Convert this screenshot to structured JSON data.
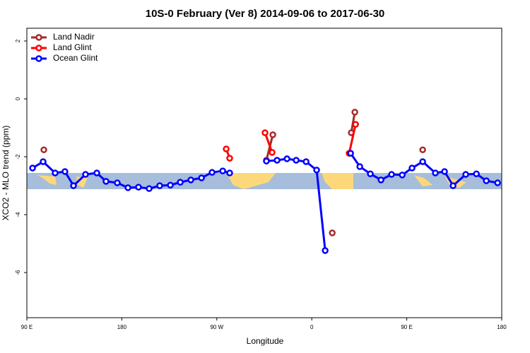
{
  "chart_data": {
    "type": "line",
    "title": "10S-0 February (Ver 8)   2014-09-06 to 2017-06-30",
    "xlabel": "Longitude",
    "ylabel": "XCO2 - MLO trend (ppm)",
    "xlim": [
      90,
      540
    ],
    "ylim": [
      -7.56,
      2.44
    ],
    "xticks": [
      {
        "value": 90,
        "label": "90 E"
      },
      180,
      {
        "value": 270,
        "label": "90 W"
      },
      {
        "value": 360,
        "label": "0"
      },
      {
        "value": 450,
        "label": "90 E"
      },
      {
        "value": 540,
        "label": "180"
      }
    ],
    "yticks": [
      2,
      0,
      -2,
      -4,
      -6
    ],
    "legend": "upper left",
    "series": [
      {
        "name": "Land Nadir",
        "color": "#a52a2a",
        "x": [
          106.1,
          null,
          317,
          323.1,
          null,
          379.4,
          null,
          397.4,
          400.8,
          null,
          465.1
        ],
        "values": [
          -1.76,
          null,
          -2.12,
          -1.24,
          null,
          -4.63,
          null,
          -1.17,
          -0.46,
          null,
          -1.76
        ]
      },
      {
        "name": "Land Glint",
        "color": "#ff0000",
        "x": [
          278.9,
          282.2,
          null,
          315.7,
          322.4,
          null,
          395.4,
          401.5
        ],
        "values": [
          -1.73,
          -2.05,
          null,
          -1.17,
          -1.85,
          null,
          -1.88,
          -0.88
        ]
      },
      {
        "name": "Ocean Glint",
        "color": "#0000ff",
        "x": [
          95.4,
          105.4,
          116.8,
          126.1,
          134.2,
          145.6,
          156.3,
          165,
          175.7,
          185.8,
          195.8,
          205.9,
          215.9,
          226,
          235.4,
          245.4,
          255.5,
          265.5,
          275.6,
          282.2,
          null,
          317,
          327.1,
          336.5,
          345.2,
          354.6,
          364.6,
          372.7,
          null,
          396.8,
          405.5,
          415.5,
          425.6,
          435.6,
          445.7,
          455,
          465.1,
          477.1,
          485.8,
          493.9,
          505.9,
          516,
          525.4,
          536.1
        ],
        "values": [
          -2.39,
          -2.17,
          -2.56,
          -2.51,
          -3.0,
          -2.61,
          -2.56,
          -2.85,
          -2.9,
          -3.07,
          -3.05,
          -3.1,
          -3.0,
          -2.98,
          -2.88,
          -2.8,
          -2.73,
          -2.54,
          -2.49,
          -2.56,
          null,
          -2.15,
          -2.12,
          -2.07,
          -2.12,
          -2.17,
          -2.46,
          -5.24,
          null,
          -1.88,
          -2.34,
          -2.59,
          -2.8,
          -2.61,
          -2.63,
          -2.39,
          -2.17,
          -2.56,
          -2.51,
          -3.0,
          -2.61,
          -2.59,
          -2.83,
          -2.9
        ]
      }
    ]
  }
}
